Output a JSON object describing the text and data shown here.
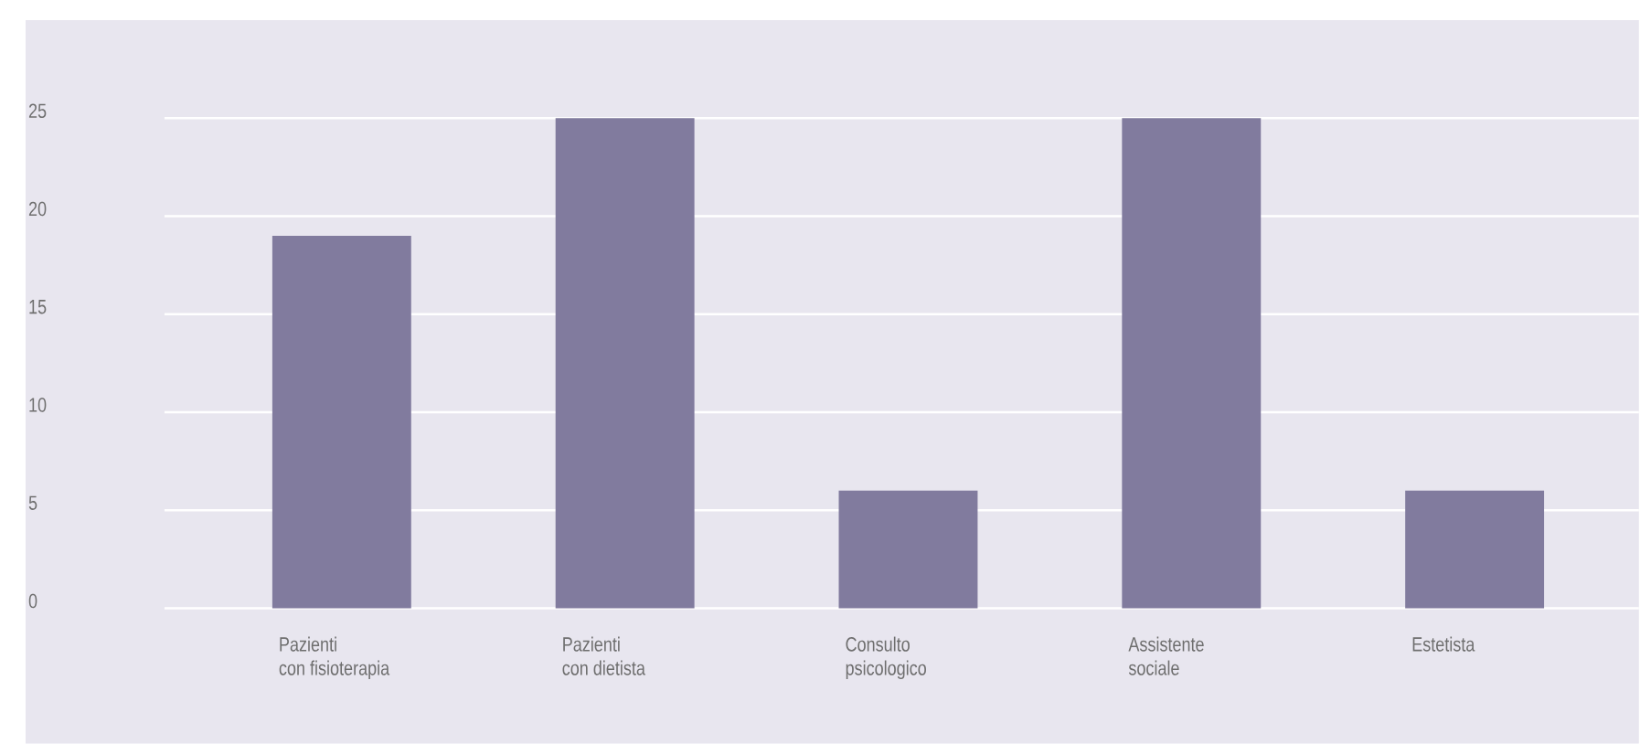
{
  "chart_data": {
    "type": "bar",
    "categories": [
      "Pazienti\ncon fisioterapia",
      "Pazienti\ncon dietista",
      "Consulto\npsicologico",
      "Assistente\nsociale",
      "Estetista"
    ],
    "values": [
      19,
      25,
      6,
      25,
      6
    ],
    "color": "#817b9e",
    "ylim": [
      0,
      30
    ],
    "yticks": [
      0,
      5,
      10,
      15,
      20,
      25
    ],
    "grid": "y"
  }
}
